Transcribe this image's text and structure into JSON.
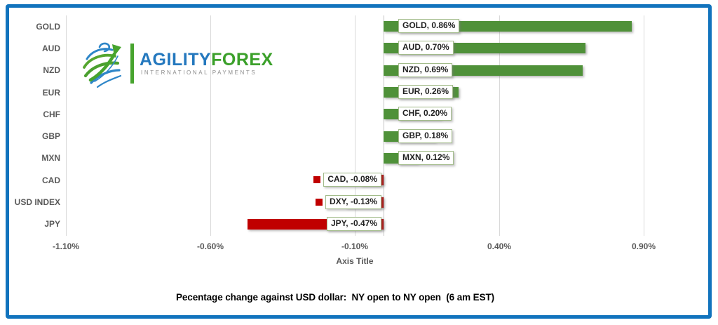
{
  "brand": {
    "name_part1": "AGILITY",
    "name_part2": "FOREX",
    "tagline": "INTERNATIONAL PAYMENTS",
    "icon": "globe-arrow-icon",
    "colors": {
      "blue": "#2478BE",
      "green": "#47A42E"
    }
  },
  "frame": {
    "border_color": "#1173BD"
  },
  "chart_data": {
    "type": "bar",
    "orientation": "horizontal",
    "title": "",
    "xlabel": "Axis Title",
    "caption": "Pecentage change against USD dollar:  NY open to NY open  (6 am EST)",
    "categories": [
      "GOLD",
      "AUD",
      "NZD",
      "EUR",
      "CHF",
      "GBP",
      "MXN",
      "CAD",
      "USD INDEX",
      "JPY"
    ],
    "values": [
      0.86,
      0.7,
      0.69,
      0.26,
      0.2,
      0.18,
      0.12,
      -0.08,
      -0.13,
      -0.47
    ],
    "data_labels": [
      "GOLD, 0.86%",
      "AUD, 0.70%",
      "NZD, 0.69%",
      "EUR, 0.26%",
      "CHF, 0.20%",
      "GBP, 0.18%",
      "MXN, 0.12%",
      "CAD, -0.08%",
      "DXY, -0.13%",
      "JPY, -0.47%"
    ],
    "x_ticks": [
      "-1.10%",
      "-0.60%",
      "-0.10%",
      "0.40%",
      "0.90%"
    ],
    "x_tick_values": [
      -1.1,
      -0.6,
      -0.1,
      0.4,
      0.9
    ],
    "xlim": [
      -1.1,
      1.0
    ],
    "gridlines": true,
    "legend": "none",
    "positive_color": "#4F9139",
    "negative_color": "#C00000",
    "label_box_border": "#A3BC8B"
  }
}
